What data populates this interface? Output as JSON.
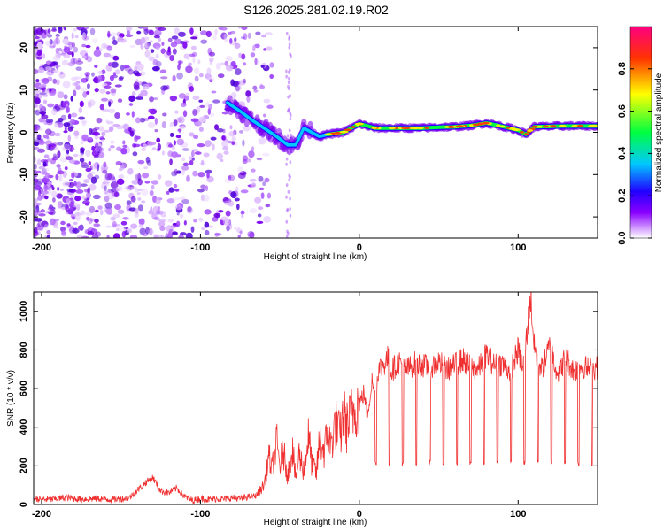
{
  "title": "S126.2025.281.02.19.R02",
  "chart_data": [
    {
      "type": "heatmap",
      "name": "spectrogram",
      "xlabel": "Height of straight line (km)",
      "ylabel": "Frequency (Hz)",
      "xlim": [
        -205,
        150
      ],
      "ylim": [
        -25,
        25
      ],
      "xticks": [
        -200,
        -100,
        0,
        100
      ],
      "yticks": [
        -20,
        -10,
        0,
        10,
        20
      ],
      "colorbar": {
        "label": "Normalized spectral amplitude",
        "range": [
          0,
          1
        ],
        "ticks": [
          0.0,
          0.2,
          0.4,
          0.6,
          0.8
        ],
        "colors": [
          "#ffffff",
          "#8a00ff",
          "#2200ff",
          "#00c8ff",
          "#00ff40",
          "#ffff00",
          "#ff3300",
          "#ff0080"
        ]
      },
      "trace": {
        "x": [
          -83,
          -75,
          -68,
          -60,
          -52,
          -45,
          -40,
          -35,
          -30,
          -25,
          -20,
          -10,
          -5,
          0,
          5,
          10,
          20,
          30,
          40,
          50,
          60,
          70,
          80,
          90,
          100,
          105,
          110,
          120,
          130,
          140,
          150
        ],
        "y": [
          7,
          5,
          3,
          1,
          -1,
          -3,
          -3,
          1,
          0,
          -1,
          -0.5,
          0,
          1,
          2,
          1.5,
          1,
          1,
          1,
          1,
          1.2,
          1.3,
          1.6,
          2.2,
          1.4,
          0.5,
          -0.5,
          1.3,
          1.4,
          1.5,
          1.5,
          1.5
        ]
      }
    },
    {
      "type": "line",
      "name": "snr",
      "xlabel": "Height of straight line (km)",
      "ylabel": "SNR (10 * v/v)",
      "xlim": [
        -205,
        150
      ],
      "ylim": [
        0,
        1100
      ],
      "xticks": [
        -200,
        -100,
        0,
        100
      ],
      "yticks": [
        0,
        200,
        400,
        600,
        800,
        1000
      ],
      "color": "#f03030",
      "series": [
        {
          "name": "SNR",
          "x": [
            -205,
            -195,
            -185,
            -175,
            -165,
            -155,
            -145,
            -135,
            -130,
            -125,
            -120,
            -115,
            -110,
            -105,
            -100,
            -95,
            -90,
            -85,
            -80,
            -75,
            -70,
            -65,
            -60,
            -57,
            -55,
            -52,
            -50,
            -48,
            -45,
            -42,
            -40,
            -38,
            -35,
            -32,
            -30,
            -27,
            -25,
            -22,
            -20,
            -18,
            -15,
            -12,
            -10,
            -8,
            -5,
            -2,
            0,
            3,
            5,
            8,
            10,
            12,
            15,
            18,
            20,
            25,
            30,
            35,
            40,
            45,
            50,
            55,
            60,
            65,
            70,
            75,
            80,
            85,
            90,
            95,
            100,
            103,
            105,
            107,
            108,
            110,
            112,
            115,
            120,
            125,
            130,
            135,
            140,
            145,
            150
          ],
          "values": [
            30,
            25,
            35,
            28,
            30,
            26,
            32,
            110,
            140,
            70,
            60,
            85,
            40,
            20,
            30,
            25,
            30,
            28,
            35,
            30,
            40,
            45,
            100,
            250,
            180,
            320,
            200,
            280,
            150,
            300,
            120,
            260,
            180,
            350,
            220,
            160,
            340,
            270,
            380,
            300,
            420,
            350,
            470,
            400,
            460,
            520,
            520,
            580,
            460,
            640,
            550,
            700,
            720,
            760,
            690,
            740,
            700,
            730,
            720,
            710,
            740,
            700,
            720,
            750,
            710,
            700,
            780,
            720,
            730,
            690,
            800,
            700,
            850,
            1000,
            1080,
            820,
            760,
            700,
            820,
            680,
            760,
            690,
            720,
            700,
            710
          ]
        }
      ]
    }
  ]
}
